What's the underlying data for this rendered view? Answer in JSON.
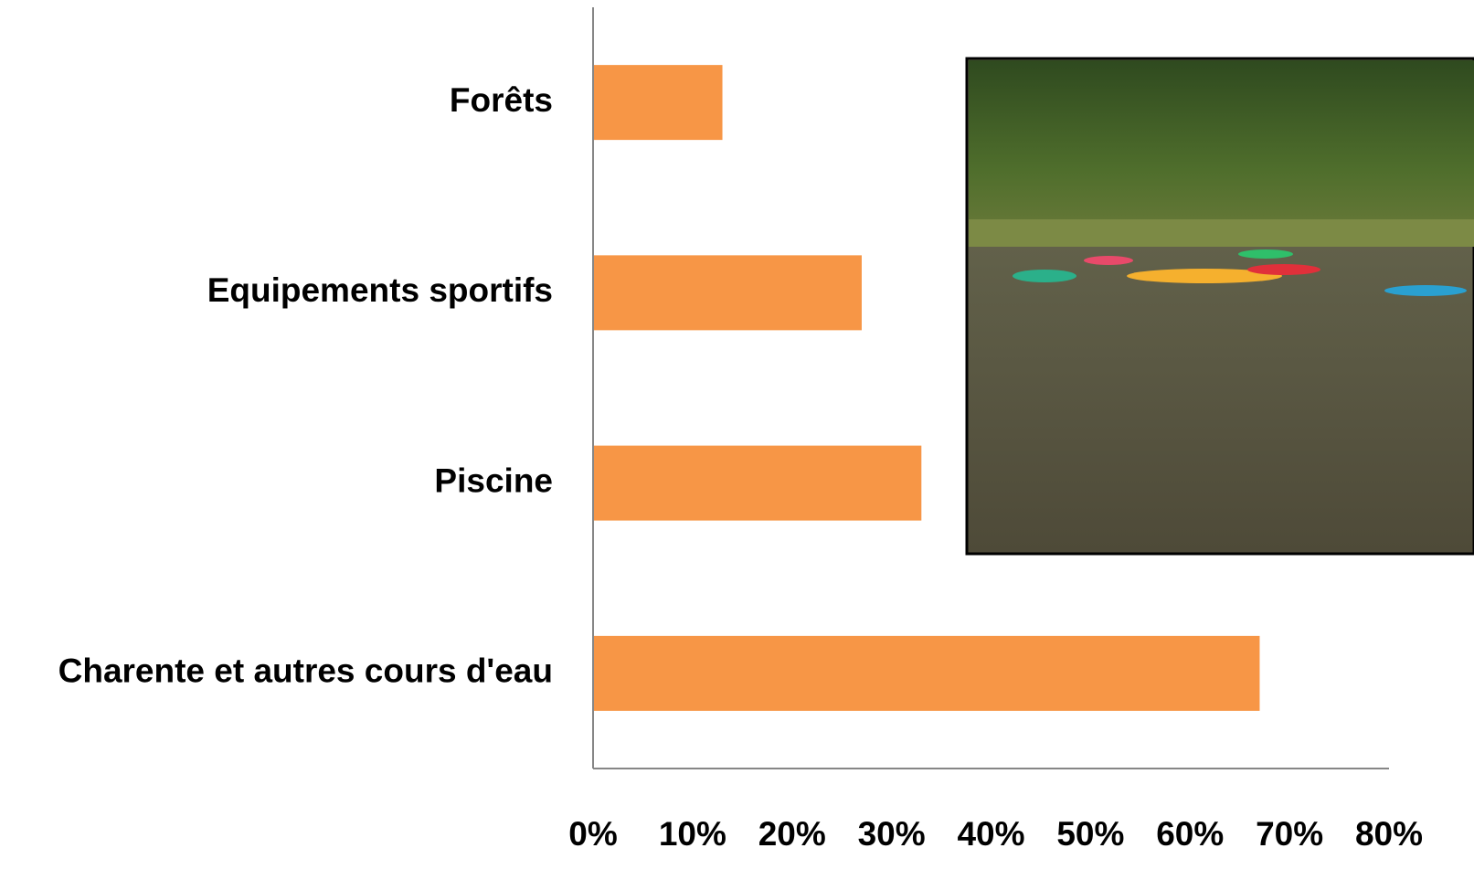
{
  "chart_data": {
    "type": "hbar",
    "categories": [
      "Forêts",
      "Equipements sportifs",
      "Piscine",
      "Charente et autres cours d'eau"
    ],
    "values": [
      13,
      27,
      33,
      67
    ],
    "color": "#f79646",
    "xlim": [
      0,
      80
    ],
    "xticks": [
      {
        "value": 0,
        "label": "0%"
      },
      {
        "value": 10,
        "label": "10%"
      },
      {
        "value": 20,
        "label": "20%"
      },
      {
        "value": 30,
        "label": "30%"
      },
      {
        "value": 40,
        "label": "40%"
      },
      {
        "value": 50,
        "label": "50%"
      },
      {
        "value": 60,
        "label": "60%"
      },
      {
        "value": 70,
        "label": "70%"
      },
      {
        "value": 80,
        "label": "80%"
      }
    ],
    "grid": false
  }
}
